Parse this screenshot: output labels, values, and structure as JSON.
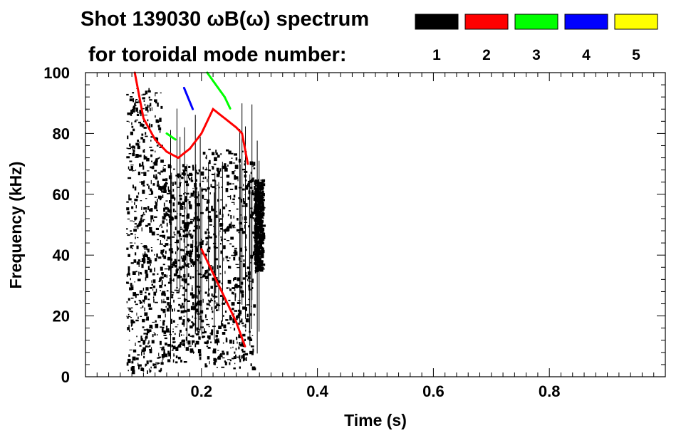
{
  "title_line1": "Shot 139030 ωB(ω) spectrum",
  "title_line2": "for toroidal mode number:",
  "legend": [
    {
      "label": "1",
      "color": "#000000"
    },
    {
      "label": "2",
      "color": "#ff0000"
    },
    {
      "label": "3",
      "color": "#00ff00"
    },
    {
      "label": "4",
      "color": "#0000ff"
    },
    {
      "label": "5",
      "color": "#ffff00"
    }
  ],
  "chart_data": {
    "type": "heatmap",
    "title": "Shot 139030 ωB(ω) spectrum",
    "xlabel": "Time (s)",
    "ylabel": "Frequency (kHz)",
    "xlim": [
      0.0,
      1.0
    ],
    "ylim": [
      0,
      100
    ],
    "xticks": [
      0.2,
      0.4,
      0.6,
      0.8
    ],
    "xtick_labels": [
      "0.2",
      "0.4",
      "0.6",
      "0.8"
    ],
    "yticks": [
      0,
      20,
      40,
      60,
      80,
      100
    ],
    "ytick_labels": [
      "0",
      "20",
      "40",
      "60",
      "80",
      "100"
    ],
    "series": [
      {
        "name": "1",
        "color": "#000000",
        "regions": [
          {
            "t": [
              0.07,
              0.13
            ],
            "f": [
              2,
              95
            ]
          },
          {
            "t": [
              0.13,
              0.2
            ],
            "f": [
              5,
              70
            ]
          },
          {
            "t": [
              0.2,
              0.29
            ],
            "f": [
              3,
              75
            ]
          },
          {
            "t": [
              0.29,
              0.305
            ],
            "f": [
              35,
              65
            ]
          }
        ],
        "stripe_t_range": [
          0.14,
          0.305
        ]
      },
      {
        "name": "2",
        "color": "#ff0000",
        "traces": [
          {
            "t": [
              0.085,
              0.1,
              0.12,
              0.14,
              0.16,
              0.18
            ],
            "f": [
              100,
              85,
              78,
              74,
              72,
              75
            ]
          },
          {
            "t": [
              0.18,
              0.2,
              0.22,
              0.24,
              0.26,
              0.27,
              0.28
            ],
            "f": [
              75,
              80,
              88,
              85,
              82,
              80,
              70
            ]
          },
          {
            "t": [
              0.2,
              0.22,
              0.24,
              0.26,
              0.275
            ],
            "f": [
              42,
              34,
              26,
              18,
              10
            ]
          }
        ]
      },
      {
        "name": "3",
        "color": "#00ff00",
        "traces": [
          {
            "t": [
              0.21,
              0.225,
              0.24,
              0.25
            ],
            "f": [
              100,
              96,
              92,
              88
            ]
          },
          {
            "t": [
              0.14,
              0.155
            ],
            "f": [
              80,
              78
            ]
          }
        ]
      },
      {
        "name": "4",
        "color": "#0000ff",
        "traces": [
          {
            "t": [
              0.17,
              0.185
            ],
            "f": [
              95,
              88
            ]
          }
        ]
      }
    ]
  }
}
